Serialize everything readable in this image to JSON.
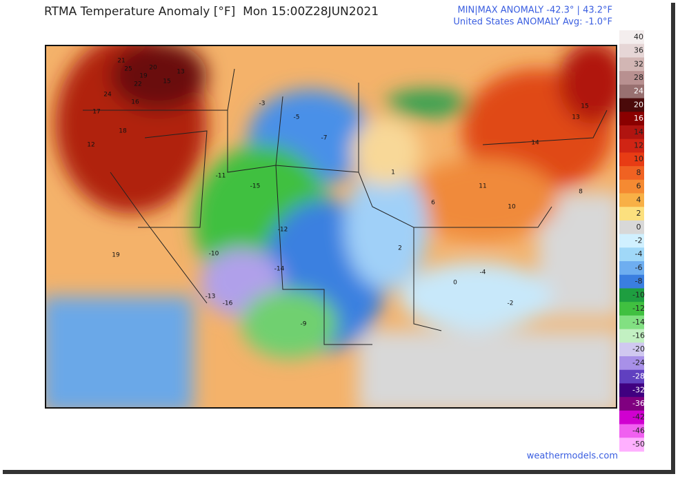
{
  "header": {
    "title": "RTMA Temperature Anomaly [°F]  Mon 15:00Z28JUN2021",
    "minmax": "MIN|MAX ANOMALY -42.3° | 43.2°F",
    "average": "United States ANOMALY Avg: -1.0°F"
  },
  "map": {
    "labels": [
      "21",
      "25",
      "20",
      "19",
      "22",
      "15",
      "13",
      "24",
      "17",
      "16",
      "18",
      "12",
      "19",
      "-5",
      "-3",
      "-7",
      "-11",
      "-15",
      "-12",
      "-14",
      "-16",
      "-13",
      "-10",
      "-9",
      "11",
      "10",
      "14",
      "8",
      "6",
      "1",
      "2",
      "-2",
      "-4",
      "0",
      "13",
      "15"
    ]
  },
  "colorbar": {
    "levels": [
      {
        "value": 40,
        "color": "#f4eeee"
      },
      {
        "value": 36,
        "color": "#e6d6d6"
      },
      {
        "value": 32,
        "color": "#d2b6b4"
      },
      {
        "value": 28,
        "color": "#b89090"
      },
      {
        "value": 24,
        "color": "#987070"
      },
      {
        "value": 20,
        "color": "#4a0a0a"
      },
      {
        "value": 16,
        "color": "#8a0000"
      },
      {
        "value": 14,
        "color": "#b01410"
      },
      {
        "value": 12,
        "color": "#d02414"
      },
      {
        "value": 10,
        "color": "#e83c14"
      },
      {
        "value": 8,
        "color": "#f06222"
      },
      {
        "value": 6,
        "color": "#f58a32"
      },
      {
        "value": 4,
        "color": "#f8b046"
      },
      {
        "value": 2,
        "color": "#fce07e"
      },
      {
        "value": 0,
        "color": "#d8d8d8"
      },
      {
        "value": -2,
        "color": "#d0f0ff"
      },
      {
        "value": -4,
        "color": "#a0d8f8"
      },
      {
        "value": -6,
        "color": "#6eaef0"
      },
      {
        "value": -8,
        "color": "#3a7ee0"
      },
      {
        "value": -10,
        "color": "#1e9e40"
      },
      {
        "value": -12,
        "color": "#40c040"
      },
      {
        "value": -14,
        "color": "#82e082"
      },
      {
        "value": -16,
        "color": "#c2f0c2"
      },
      {
        "value": -20,
        "color": "#d0c8f0"
      },
      {
        "value": -24,
        "color": "#a890e8"
      },
      {
        "value": -28,
        "color": "#6040c0"
      },
      {
        "value": -32,
        "color": "#400080"
      },
      {
        "value": -36,
        "color": "#800080"
      },
      {
        "value": -42,
        "color": "#d000d0"
      },
      {
        "value": -46,
        "color": "#f060f0"
      },
      {
        "value": -50,
        "color": "#ffb0ff"
      }
    ]
  },
  "credit": "weathermodels.com"
}
